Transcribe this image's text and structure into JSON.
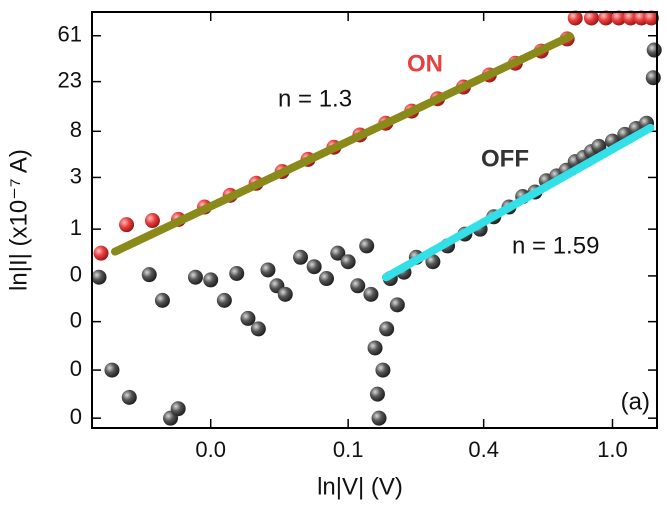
{
  "chart_data": {
    "type": "scatter",
    "xlabel": "ln|V| (V)",
    "ylabel": "ln|I| (x10⁻⁷ A)",
    "xlog": true,
    "ylog": true,
    "xlim": [
      0.018,
      1.41
    ],
    "ylim": [
      0.0146,
      101
    ],
    "xticks": [
      {
        "value": 0.045,
        "label": "0.0"
      },
      {
        "value": 0.13,
        "label": "0.1"
      },
      {
        "value": 0.37,
        "label": "0.4"
      },
      {
        "value": 1.0,
        "label": "1.0"
      }
    ],
    "yticks": [
      {
        "value": 0.018,
        "label": "0"
      },
      {
        "value": 0.05,
        "label": "0"
      },
      {
        "value": 0.14,
        "label": "0"
      },
      {
        "value": 0.37,
        "label": "0"
      },
      1,
      3,
      8,
      23,
      61
    ],
    "series": [
      {
        "name": "ON",
        "color": "#e8403f",
        "x": [
          0.0193,
          0.0235,
          0.0287,
          0.0351,
          0.0429,
          0.0523,
          0.0639,
          0.0781,
          0.0954,
          0.1165,
          0.1423,
          0.1738,
          0.2122,
          0.2592,
          0.3166,
          0.3867,
          0.4724,
          0.5769,
          0.7047,
          0.75,
          0.85,
          0.95,
          1.05,
          1.15,
          1.25,
          1.35
        ],
        "values": [
          0.6,
          1.1,
          1.2,
          1.23,
          1.6,
          2.05,
          2.65,
          3.4,
          4.4,
          5.7,
          7.4,
          9.5,
          12.3,
          16,
          20.5,
          26.5,
          34,
          44,
          57,
          89,
          89,
          89,
          89,
          89,
          89,
          89
        ]
      },
      {
        "name": "OFF",
        "color": "#555555",
        "x": [
          0.019,
          0.021,
          0.024,
          0.028,
          0.031,
          0.033,
          0.035,
          0.04,
          0.045,
          0.05,
          0.055,
          0.06,
          0.065,
          0.07,
          0.075,
          0.08,
          0.09,
          0.1,
          0.11,
          0.12,
          0.13,
          0.14,
          0.15,
          0.155,
          0.16,
          0.163,
          0.165,
          0.17,
          0.175,
          0.18,
          0.19,
          0.2,
          0.22,
          0.25,
          0.28,
          0.32,
          0.36,
          0.4,
          0.45,
          0.5,
          0.55,
          0.6,
          0.65,
          0.7,
          0.75,
          0.8,
          0.85,
          0.9,
          1.0,
          1.1,
          1.2,
          1.3,
          1.37,
          1.38
        ],
        "values": [
          0.36,
          0.05,
          0.028,
          0.38,
          0.22,
          0.018,
          0.022,
          0.36,
          0.34,
          0.22,
          0.39,
          0.15,
          0.12,
          0.42,
          0.3,
          0.25,
          0.55,
          0.45,
          0.35,
          0.6,
          0.5,
          0.3,
          0.7,
          0.25,
          0.08,
          0.03,
          0.018,
          0.05,
          0.12,
          0.35,
          0.2,
          0.4,
          0.55,
          0.5,
          0.7,
          0.9,
          1.0,
          1.3,
          1.6,
          2.0,
          2.2,
          2.8,
          3.1,
          3.5,
          4.2,
          4.6,
          5.2,
          5.8,
          6.5,
          7.5,
          8.5,
          9.5,
          25,
          45
        ]
      }
    ],
    "fits": [
      {
        "label": "n = 1.3",
        "color": "#8a8a1a",
        "x": [
          0.0215,
          0.72
        ],
        "values": [
          0.62,
          60
        ]
      },
      {
        "label": "n = 1.59",
        "color": "#33e0e8",
        "x": [
          0.174,
          1.34
        ],
        "values": [
          0.36,
          8.6
        ]
      }
    ],
    "annotation": "(a)"
  }
}
